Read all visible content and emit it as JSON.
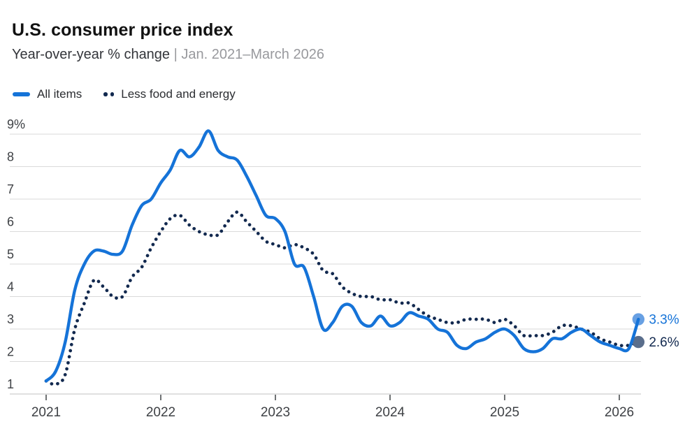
{
  "header": {
    "title": "U.S. consumer price index",
    "subtitle_main": "Year-over-year % change",
    "subtitle_note": "| Jan. 2021–March 2026"
  },
  "legend": {
    "items": [
      {
        "label": "All items",
        "swatch": "solid-line",
        "color": "#1573d8"
      },
      {
        "label": "Less food and energy",
        "swatch": "dots",
        "color": "#12294f"
      }
    ]
  },
  "chart_data": {
    "type": "line",
    "title": "U.S. consumer price index",
    "subtitle": "Year-over-year % change",
    "date_range": "Jan. 2021–March 2026",
    "x_frequency": "monthly",
    "x_tick_labels": [
      "2021",
      "2022",
      "2023",
      "2024",
      "2025",
      "2026"
    ],
    "y_tick_labels": [
      "9%",
      "8",
      "7",
      "6",
      "5",
      "4",
      "3",
      "2",
      "1"
    ],
    "ylim": [
      1,
      9
    ],
    "grid": "horizontal",
    "legend_position": "top-left",
    "series": [
      {
        "name": "All items",
        "style": "solid",
        "color": "#1573d8",
        "marker_color": "#68a0e3",
        "end_label": "3.3%",
        "values": [
          1.4,
          1.7,
          2.6,
          4.2,
          5.0,
          5.4,
          5.4,
          5.3,
          5.4,
          6.2,
          6.8,
          7.0,
          7.5,
          7.9,
          8.5,
          8.3,
          8.6,
          9.1,
          8.5,
          8.3,
          8.2,
          7.7,
          7.1,
          6.5,
          6.4,
          6.0,
          5.0,
          4.9,
          4.0,
          3.0,
          3.2,
          3.7,
          3.7,
          3.2,
          3.1,
          3.4,
          3.1,
          3.2,
          3.5,
          3.4,
          3.3,
          3.0,
          2.9,
          2.5,
          2.4,
          2.6,
          2.7,
          2.9,
          3.0,
          2.8,
          2.4,
          2.3,
          2.4,
          2.7,
          2.7,
          2.9,
          3.0,
          2.8,
          2.6,
          2.5,
          2.4,
          2.4,
          3.3
        ]
      },
      {
        "name": "Less food and energy",
        "style": "dotted",
        "color": "#12294f",
        "marker_color": "#5a6e8c",
        "end_label": "2.6%",
        "values": [
          1.4,
          1.3,
          1.6,
          3.0,
          3.8,
          4.5,
          4.3,
          4.0,
          4.0,
          4.6,
          4.9,
          5.5,
          6.0,
          6.4,
          6.5,
          6.2,
          6.0,
          5.9,
          5.9,
          6.3,
          6.6,
          6.3,
          6.0,
          5.7,
          5.6,
          5.5,
          5.6,
          5.5,
          5.3,
          4.8,
          4.7,
          4.3,
          4.1,
          4.0,
          4.0,
          3.9,
          3.9,
          3.8,
          3.8,
          3.6,
          3.4,
          3.3,
          3.2,
          3.2,
          3.3,
          3.3,
          3.3,
          3.2,
          3.3,
          3.1,
          2.8,
          2.8,
          2.8,
          2.9,
          3.1,
          3.1,
          3.0,
          2.9,
          2.7,
          2.6,
          2.5,
          2.5,
          2.6
        ]
      }
    ]
  },
  "colors": {
    "accent_blue": "#1573d8",
    "navy": "#12294f",
    "grid": "#dadada",
    "axis_line": "#c2c2c2",
    "tick": "#3f4245",
    "axis_label": "#3e4145",
    "background": "#ffffff"
  }
}
